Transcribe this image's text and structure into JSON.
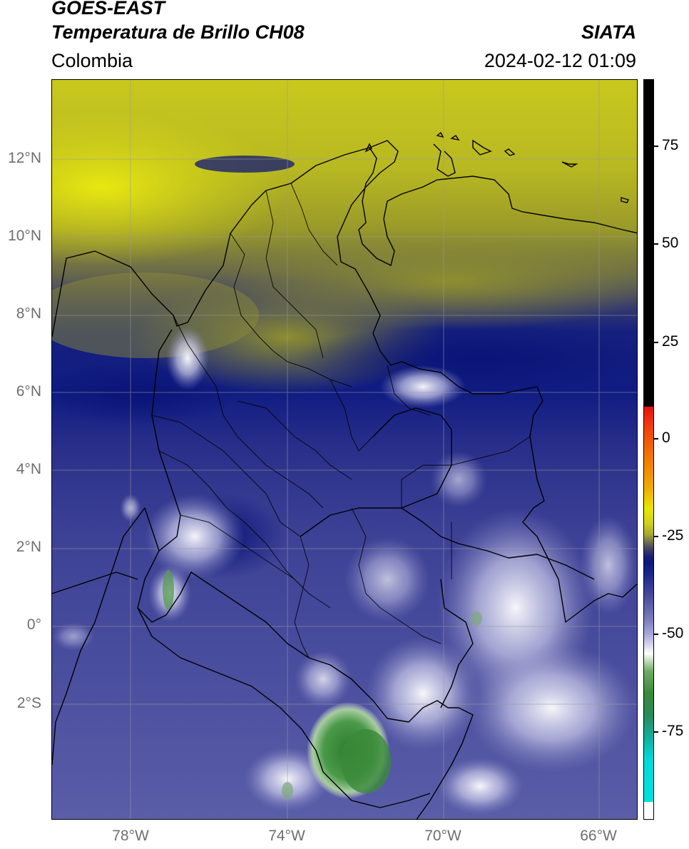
{
  "header": {
    "satellite": "GOES-EAST",
    "product": "Temperatura de Brillo CH08",
    "region": "Colombia",
    "agency": "SIATA",
    "datetime": "2024-02-12 01:09"
  },
  "map": {
    "lat_labels": [
      "12°N",
      "10°N",
      "8°N",
      "6°N",
      "4°N",
      "2°N",
      "0°",
      "2°S"
    ],
    "lon_labels": [
      "78°W",
      "74°W",
      "70°W",
      "66°W"
    ],
    "extent": {
      "lon_min": -80,
      "lon_max": -65,
      "lat_min": -5,
      "lat_max": 14
    }
  },
  "colorbar": {
    "labels": [
      "75",
      "50",
      "25",
      "0",
      "-25",
      "-50",
      "-75"
    ],
    "values": [
      75,
      50,
      25,
      0,
      -25,
      -50,
      -75
    ],
    "range": [
      -95,
      90
    ],
    "colors": {
      "hot": "#000000",
      "red": "#e81010",
      "orange": "#f08000",
      "yellow": "#e8e800",
      "olive": "#a8a820",
      "navy": "#0a1a80",
      "lavender": "#a8a8d8",
      "white": "#ffffff",
      "green": "#3a8a3a",
      "cyan": "#00dada"
    }
  }
}
